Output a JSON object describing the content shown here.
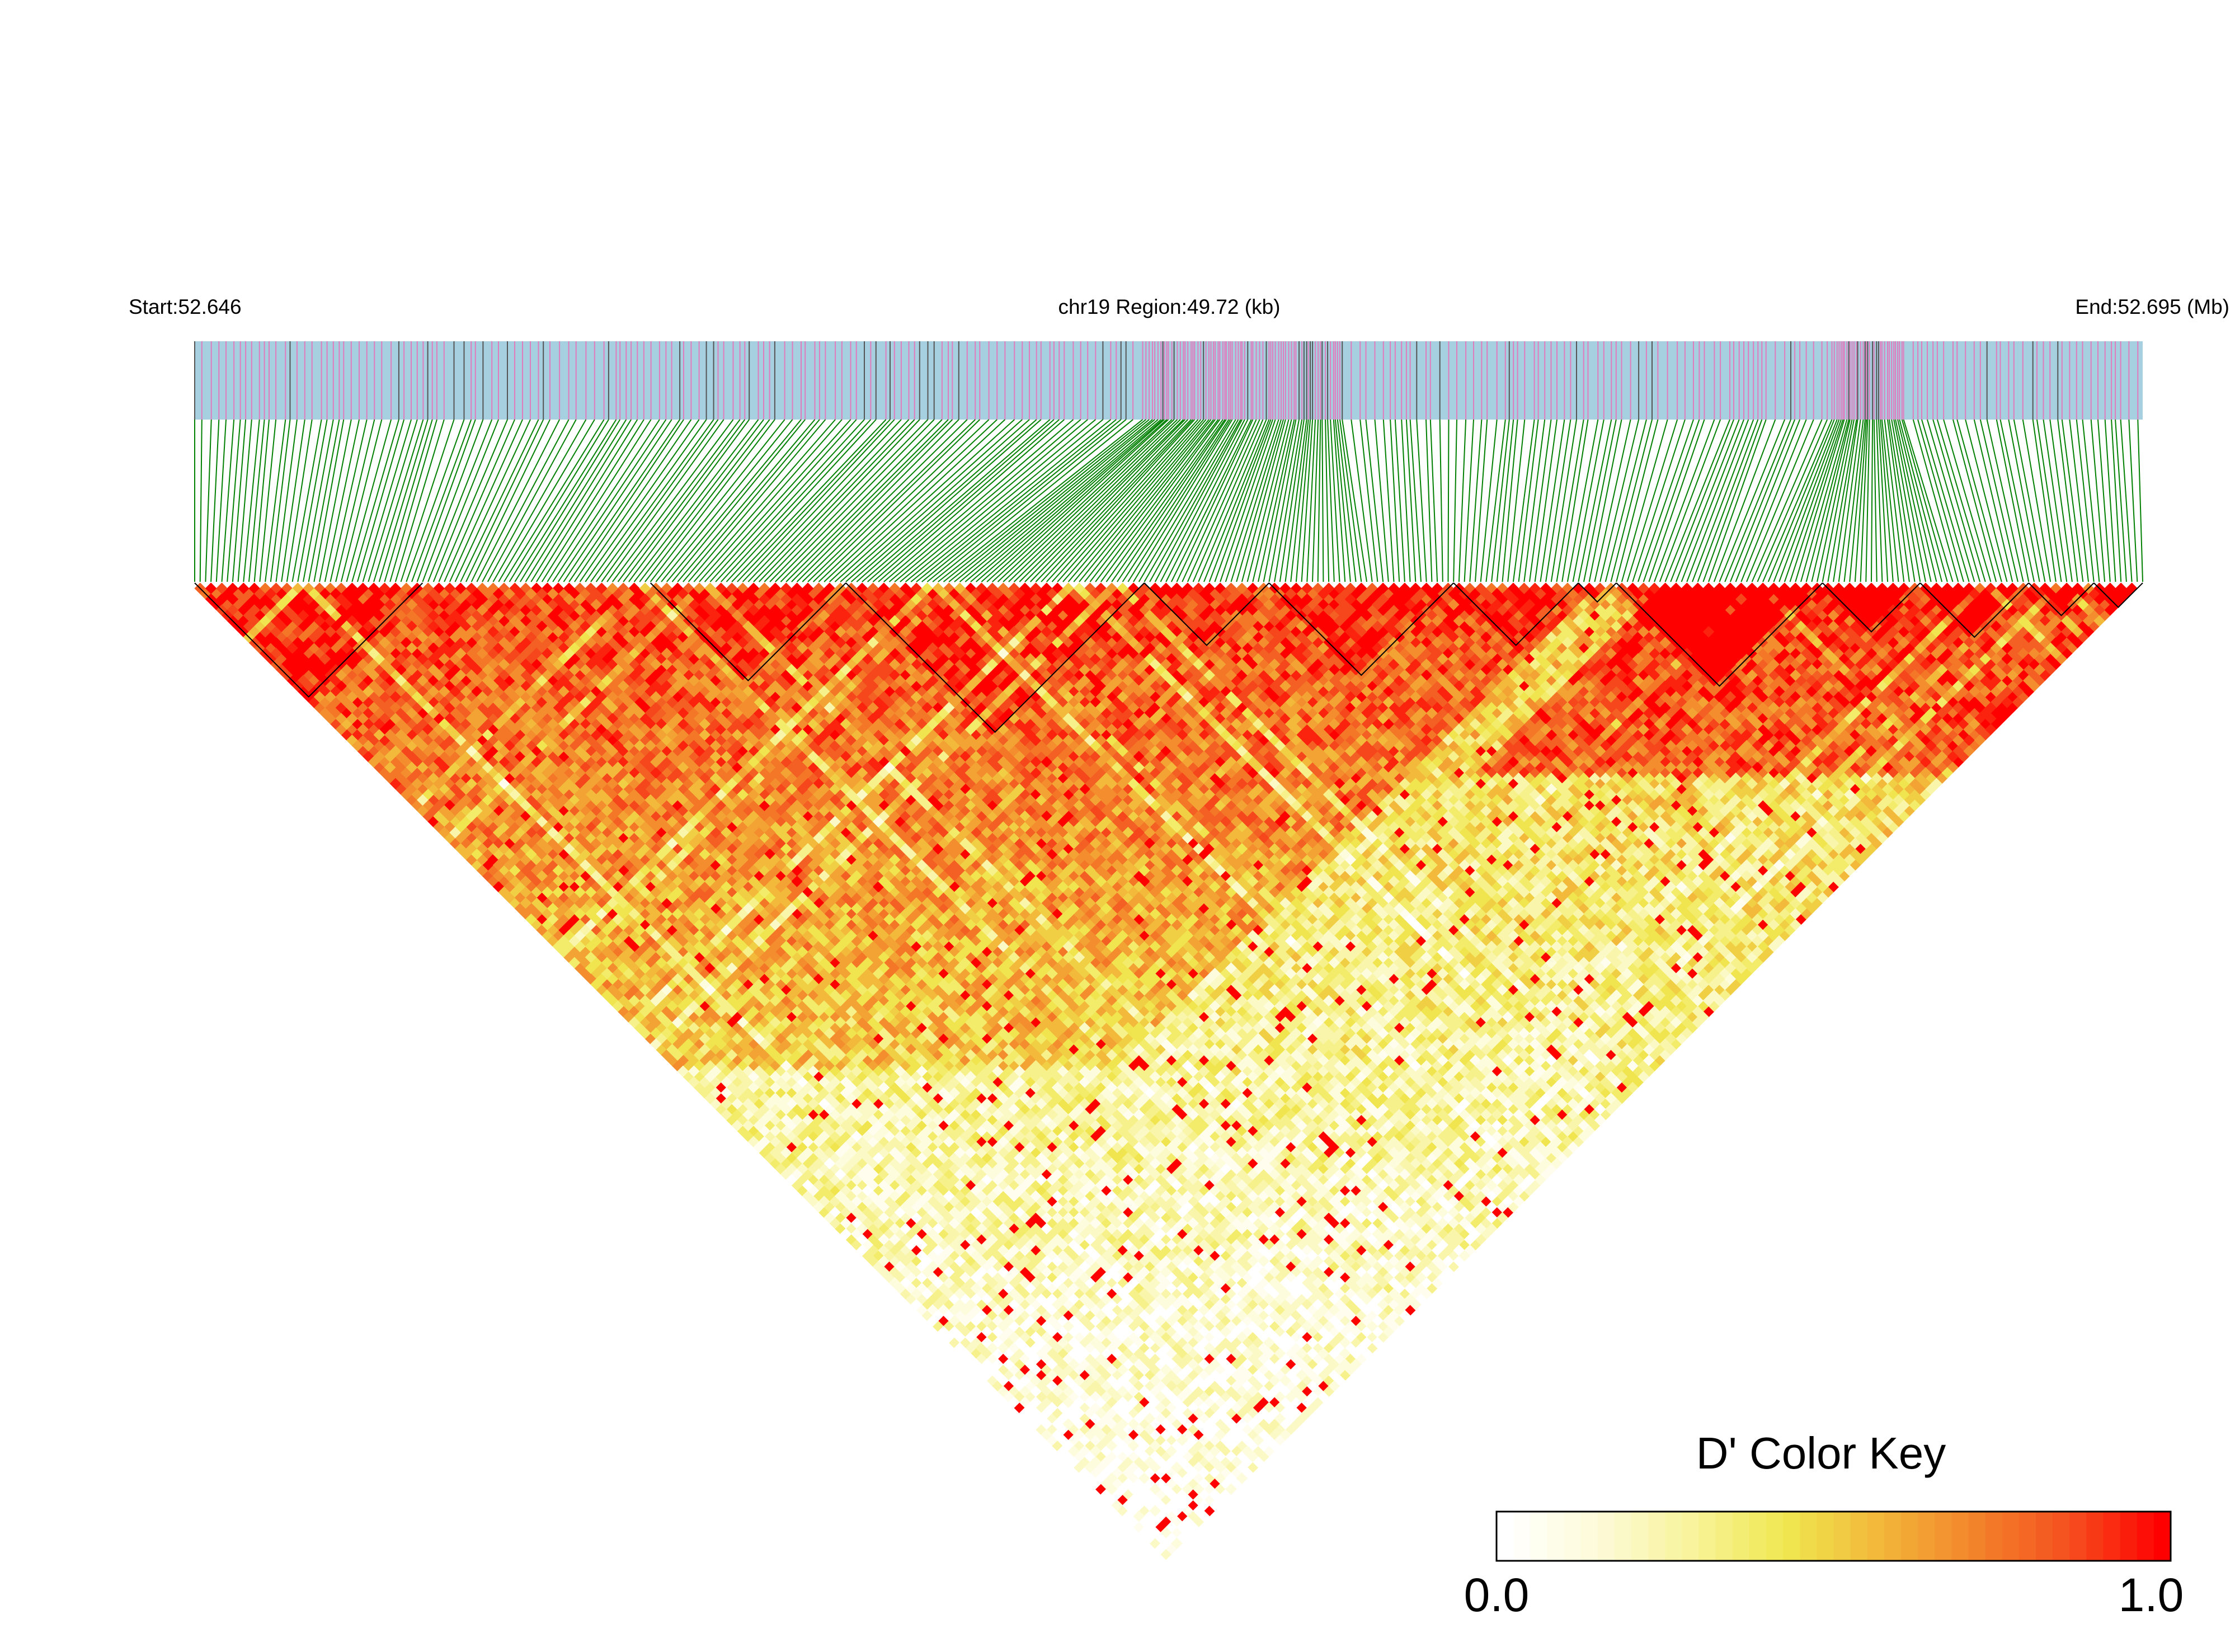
{
  "chart_data": {
    "type": "heatmap",
    "subtype": "linkage-disequilibrium-triangle",
    "header": {
      "start_label": "Start:52.646",
      "region_label": "chr19 Region:49.72 (kb)",
      "end_label": "End:52.695 (Mb)"
    },
    "chromosome": "chr19",
    "region_start_mb": 52.646,
    "region_end_mb": 52.695,
    "region_length_kb": 49.72,
    "statistic": "D'",
    "approx_snp_count": 360,
    "value_range": [
      0.0,
      1.0
    ],
    "blocks_marked": true,
    "legend": {
      "title": "D' Color Key",
      "min_label": "0.0",
      "max_label": "1.0",
      "placement": "bottom-right",
      "colors": [
        "#ffffff",
        "#fdfbd8",
        "#f8f39a",
        "#f0e84f",
        "#f2b63a",
        "#f3842b",
        "#f5501f",
        "#ff0000"
      ]
    },
    "colors": {
      "track_fill": "#a6cfe0",
      "snp_mark": "#e07bbd",
      "snp_mark_dark": "#555555",
      "connector": "#008000",
      "block_outline": "#000000"
    }
  }
}
